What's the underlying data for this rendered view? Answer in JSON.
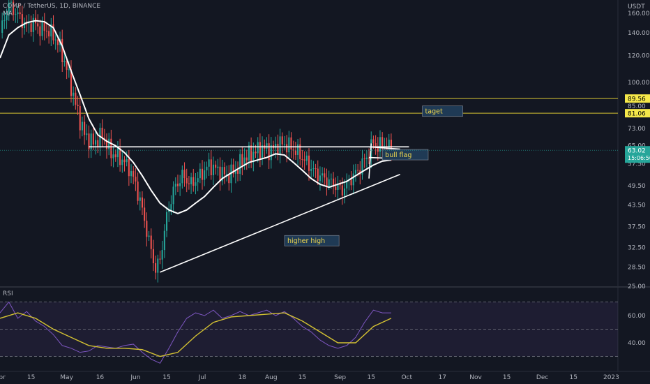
{
  "header": {
    "symbol": "COMP / TetherUS, 1D, BINANCE",
    "indicator": "MA"
  },
  "rsi_label": "RSI",
  "chart_data": [
    {
      "type": "candlestick",
      "title": "COMP / TetherUS, 1D, BINANCE",
      "currency_label": "USDT",
      "y_scale": "log",
      "ylim": [
        25,
        175
      ],
      "y_ticks": [
        "160.00",
        "140.00",
        "120.00",
        "100.00",
        "85.00",
        "73.00",
        "65.00",
        "57.50",
        "49.50",
        "43.50",
        "37.50",
        "32.50",
        "28.50",
        "25.00"
      ],
      "y_tick_values": [
        160,
        140,
        120,
        100,
        85,
        73,
        65,
        57.5,
        49.5,
        43.5,
        37.5,
        32.5,
        28.5,
        25
      ],
      "x_ticks": [
        "Apr",
        "15",
        "May",
        "16",
        "Jun",
        "15",
        "Jul",
        "18",
        "Aug",
        "15",
        "Sep",
        "15",
        "Oct",
        "17",
        "Nov",
        "15",
        "Dec",
        "15",
        "2023"
      ],
      "x_tick_days": [
        0,
        14,
        30,
        45,
        61,
        75,
        91,
        109,
        122,
        136,
        153,
        167,
        183,
        199,
        214,
        228,
        244,
        258,
        275
      ],
      "x_range_days": [
        0,
        278
      ],
      "price_path": [
        [
          0,
          140
        ],
        [
          4,
          170
        ],
        [
          8,
          158
        ],
        [
          12,
          146
        ],
        [
          15,
          150
        ],
        [
          18,
          144
        ],
        [
          22,
          142
        ],
        [
          26,
          132
        ],
        [
          30,
          110
        ],
        [
          34,
          86
        ],
        [
          38,
          70
        ],
        [
          42,
          66
        ],
        [
          46,
          70
        ],
        [
          50,
          62
        ],
        [
          54,
          60
        ],
        [
          58,
          56
        ],
        [
          61,
          50
        ],
        [
          64,
          42
        ],
        [
          67,
          34
        ],
        [
          70,
          28
        ],
        [
          72,
          30
        ],
        [
          75,
          40
        ],
        [
          78,
          48
        ],
        [
          82,
          53
        ],
        [
          86,
          50
        ],
        [
          90,
          53
        ],
        [
          94,
          57
        ],
        [
          98,
          55
        ],
        [
          102,
          53
        ],
        [
          106,
          55
        ],
        [
          110,
          60
        ],
        [
          114,
          62
        ],
        [
          118,
          64
        ],
        [
          122,
          63
        ],
        [
          126,
          66
        ],
        [
          130,
          65
        ],
        [
          134,
          62
        ],
        [
          138,
          58
        ],
        [
          142,
          54
        ],
        [
          146,
          52
        ],
        [
          150,
          50
        ],
        [
          154,
          48
        ],
        [
          158,
          52
        ],
        [
          162,
          56
        ],
        [
          166,
          62
        ],
        [
          168,
          67
        ],
        [
          170,
          64
        ],
        [
          172,
          66
        ],
        [
          174,
          64
        ],
        [
          176,
          64
        ]
      ],
      "ma_path": [
        [
          0,
          118
        ],
        [
          4,
          138
        ],
        [
          8,
          145
        ],
        [
          12,
          150
        ],
        [
          16,
          152
        ],
        [
          20,
          151
        ],
        [
          24,
          145
        ],
        [
          28,
          128
        ],
        [
          32,
          108
        ],
        [
          36,
          92
        ],
        [
          40,
          78
        ],
        [
          44,
          70
        ],
        [
          48,
          67
        ],
        [
          52,
          65
        ],
        [
          56,
          62
        ],
        [
          60,
          58
        ],
        [
          64,
          53
        ],
        [
          68,
          48
        ],
        [
          72,
          44
        ],
        [
          76,
          42
        ],
        [
          80,
          41
        ],
        [
          84,
          42
        ],
        [
          88,
          44
        ],
        [
          92,
          46
        ],
        [
          96,
          49
        ],
        [
          100,
          52
        ],
        [
          104,
          54
        ],
        [
          108,
          56
        ],
        [
          112,
          58
        ],
        [
          116,
          59
        ],
        [
          120,
          60
        ],
        [
          124,
          61.5
        ],
        [
          128,
          61
        ],
        [
          132,
          58
        ],
        [
          136,
          55
        ],
        [
          140,
          52
        ],
        [
          144,
          50
        ],
        [
          148,
          49
        ],
        [
          152,
          50
        ],
        [
          156,
          51
        ],
        [
          160,
          53
        ],
        [
          164,
          55
        ],
        [
          168,
          57
        ],
        [
          172,
          58.5
        ],
        [
          176,
          59
        ]
      ],
      "last_price": "63.02",
      "countdown": "15:06:50",
      "levels": [
        {
          "price": 89.56,
          "label": "89.56",
          "color": "#d4c232"
        },
        {
          "price": 81.06,
          "label": "81.06",
          "color": "#d4c232"
        }
      ],
      "annotations": [
        {
          "text": "taget",
          "day": 190,
          "price": 82
        },
        {
          "text": "bull flag",
          "day": 172,
          "price": 61
        },
        {
          "text": "higher high",
          "day": 128,
          "price": 34
        }
      ],
      "drawings": [
        {
          "kind": "trendline",
          "from": [
            72,
            27.5
          ],
          "to": [
            180,
            53.5
          ],
          "color": "#ffffff"
        },
        {
          "kind": "resistance",
          "from": [
            40,
            64.5
          ],
          "to": [
            184,
            64.5
          ],
          "color": "#ffffff"
        },
        {
          "kind": "flag-top",
          "from": [
            166,
            64.5
          ],
          "to": [
            180,
            63.5
          ],
          "color": "#ffffff"
        },
        {
          "kind": "flag-bottom",
          "from": [
            166,
            60
          ],
          "to": [
            180,
            59.5
          ],
          "color": "#ffffff"
        },
        {
          "kind": "flagpole",
          "from": [
            166,
            52
          ],
          "to": [
            167,
            66
          ],
          "color": "#ffffff"
        }
      ],
      "colors": {
        "up": "#26a69a",
        "down": "#ef5350",
        "ma": "#ffffff",
        "last": "#26a69a"
      }
    },
    {
      "type": "line",
      "title": "RSI",
      "ylim": [
        20,
        80
      ],
      "y_ticks": [
        "60.00",
        "40.00"
      ],
      "y_tick_values": [
        60,
        40
      ],
      "bands": [
        30,
        50,
        70
      ],
      "series": [
        {
          "kind": "rsi",
          "color": "#7e57c2",
          "values": [
            [
              0,
              62
            ],
            [
              4,
              70
            ],
            [
              8,
              58
            ],
            [
              12,
              63
            ],
            [
              16,
              56
            ],
            [
              20,
              52
            ],
            [
              24,
              46
            ],
            [
              28,
              38
            ],
            [
              32,
              36
            ],
            [
              36,
              33
            ],
            [
              40,
              34
            ],
            [
              44,
              38
            ],
            [
              48,
              37
            ],
            [
              52,
              36
            ],
            [
              56,
              38
            ],
            [
              60,
              39
            ],
            [
              64,
              33
            ],
            [
              68,
              28
            ],
            [
              72,
              25
            ],
            [
              76,
              36
            ],
            [
              80,
              48
            ],
            [
              84,
              58
            ],
            [
              88,
              62
            ],
            [
              92,
              60
            ],
            [
              96,
              64
            ],
            [
              100,
              58
            ],
            [
              104,
              60
            ],
            [
              108,
              63
            ],
            [
              112,
              60
            ],
            [
              116,
              62
            ],
            [
              120,
              64
            ],
            [
              124,
              60
            ],
            [
              128,
              63
            ],
            [
              132,
              58
            ],
            [
              136,
              52
            ],
            [
              140,
              48
            ],
            [
              144,
              42
            ],
            [
              148,
              38
            ],
            [
              152,
              36
            ],
            [
              156,
              38
            ],
            [
              160,
              44
            ],
            [
              164,
              55
            ],
            [
              168,
              64
            ],
            [
              172,
              62
            ],
            [
              176,
              62
            ]
          ]
        },
        {
          "kind": "rsi-ma",
          "color": "#d4c232",
          "values": [
            [
              0,
              58
            ],
            [
              8,
              62
            ],
            [
              16,
              58
            ],
            [
              24,
              50
            ],
            [
              32,
              44
            ],
            [
              40,
              38
            ],
            [
              48,
              36
            ],
            [
              56,
              36
            ],
            [
              64,
              35
            ],
            [
              72,
              30
            ],
            [
              80,
              33
            ],
            [
              88,
              45
            ],
            [
              96,
              55
            ],
            [
              104,
              59
            ],
            [
              112,
              60
            ],
            [
              120,
              61
            ],
            [
              128,
              62
            ],
            [
              136,
              56
            ],
            [
              144,
              48
            ],
            [
              152,
              40
            ],
            [
              160,
              40
            ],
            [
              168,
              52
            ],
            [
              176,
              58
            ]
          ]
        }
      ]
    }
  ]
}
